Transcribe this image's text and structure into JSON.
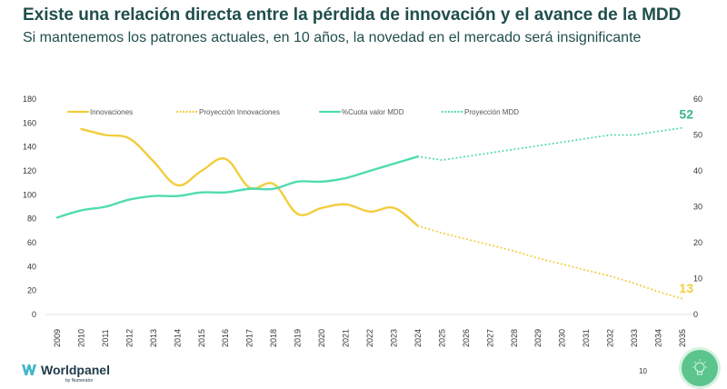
{
  "header": {
    "title": "Existe una relación directa entre la pérdida de innovación y el avance de la MDD",
    "subtitle": "Si mantenemos los patrones actuales, en 10 años, la novedad en el mercado será insignificante"
  },
  "footer": {
    "brand": "Worldpanel",
    "brand_sub": "by Numerator",
    "page_number": "10",
    "badge_icon": "lightbulb-icon"
  },
  "colors": {
    "innovaciones": "#f2cd3c",
    "mdd": "#4fdcb0",
    "label_innov": "#f2cd3c",
    "label_mdd": "#3bb58b",
    "title": "#1f4e4c"
  },
  "chart_data": {
    "type": "line",
    "title": "",
    "xlabel": "",
    "ylabel_left": "",
    "ylabel_right": "",
    "x": [
      "2009",
      "2010",
      "2011",
      "2012",
      "2013",
      "2014",
      "2015",
      "2016",
      "2017",
      "2018",
      "2019",
      "2020",
      "2021",
      "2022",
      "2023",
      "2024",
      "2025",
      "2026",
      "2027",
      "2028",
      "2029",
      "2030",
      "2031",
      "2032",
      "2033",
      "2034",
      "2035"
    ],
    "y_left_ticks": [
      "0",
      "20",
      "40",
      "60",
      "80",
      "100",
      "120",
      "140",
      "160",
      "180"
    ],
    "y_right_ticks": [
      "0",
      "10",
      "20",
      "30",
      "40",
      "50",
      "60"
    ],
    "ylim_left": [
      0,
      180
    ],
    "ylim_right": [
      0,
      60
    ],
    "grid": false,
    "legend_position": "top",
    "series": [
      {
        "name": "Innovaciones",
        "axis": "left",
        "style": "solid",
        "color": "#f2cd3c",
        "values": [
          null,
          155,
          150,
          147,
          128,
          108,
          120,
          130,
          106,
          109,
          84,
          89,
          92,
          86,
          89,
          74,
          null,
          null,
          null,
          null,
          null,
          null,
          null,
          null,
          null,
          null,
          null
        ]
      },
      {
        "name": "Proyección Innovaciones",
        "axis": "left",
        "style": "dotted",
        "color": "#f2cd3c",
        "values": [
          null,
          null,
          null,
          null,
          null,
          null,
          null,
          null,
          null,
          null,
          null,
          null,
          null,
          null,
          null,
          74,
          68,
          63,
          58,
          53,
          47,
          42,
          37,
          32,
          26,
          19,
          13
        ]
      },
      {
        "name": "%Cuota valor MDD",
        "axis": "right",
        "style": "solid",
        "color": "#4fdcb0",
        "values": [
          27,
          29,
          30,
          32,
          33,
          33,
          34,
          34,
          35,
          35,
          37,
          37,
          38,
          40,
          42,
          44,
          null,
          null,
          null,
          null,
          null,
          null,
          null,
          null,
          null,
          null,
          null
        ]
      },
      {
        "name": "Proyección MDD",
        "axis": "right",
        "style": "dotted",
        "color": "#4fdcb0",
        "values": [
          null,
          null,
          null,
          null,
          null,
          null,
          null,
          null,
          null,
          null,
          null,
          null,
          null,
          null,
          null,
          44,
          43,
          44,
          45,
          46,
          47,
          48,
          49,
          50,
          50,
          51,
          52
        ]
      }
    ],
    "annotations": [
      {
        "text": "52",
        "series": "Proyección MDD",
        "x": "2035"
      },
      {
        "text": "13",
        "series": "Proyección Innovaciones",
        "x": "2035"
      }
    ]
  }
}
